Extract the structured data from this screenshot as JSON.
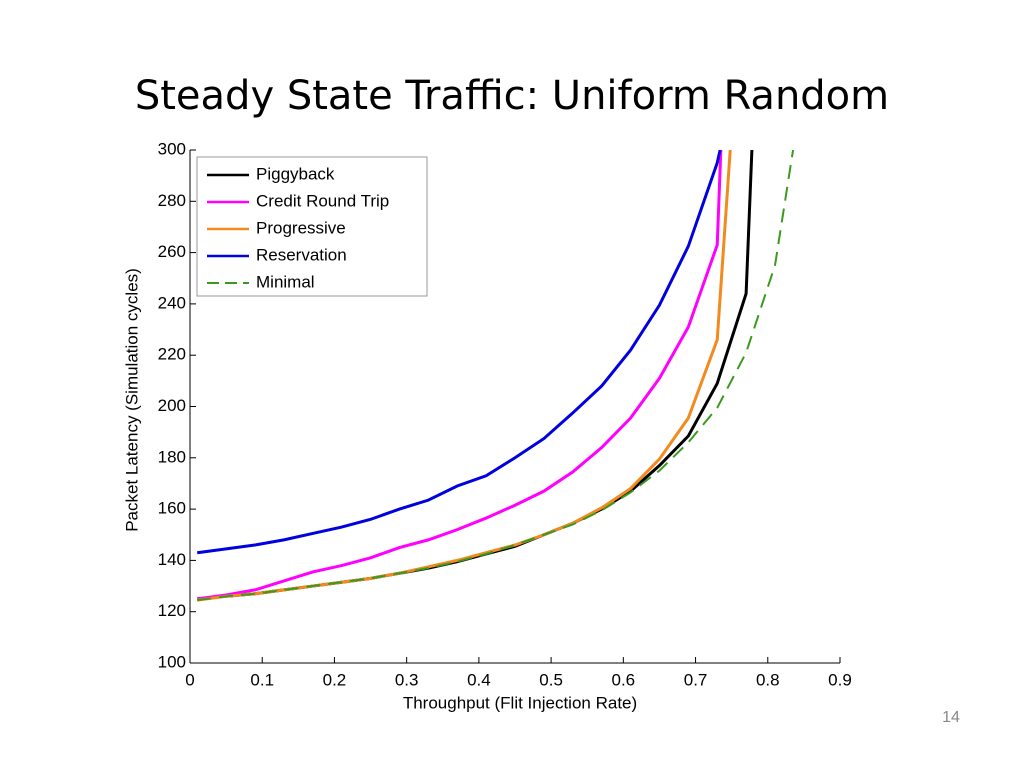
{
  "chart_data": {
    "type": "line",
    "title": "Steady State Traffic: Uniform Random",
    "x_label": "Throughput (Flit Injection Rate)",
    "y_label": "Packet Latency  (Simulation cycles)",
    "page_number": "14",
    "xlim": [
      0,
      0.9
    ],
    "xticks": [
      0,
      0.1,
      0.2,
      0.3,
      0.4,
      0.5,
      0.6,
      0.7,
      0.8,
      0.9
    ],
    "ylim": [
      100,
      300
    ],
    "yticks": [
      100,
      120,
      140,
      160,
      180,
      200,
      220,
      240,
      260,
      280,
      300
    ],
    "legend": "upper left",
    "series": [
      {
        "name": "Piggyback",
        "color": "#000000",
        "dash": false,
        "x": [
          0.01,
          0.05,
          0.09,
          0.13,
          0.17,
          0.21,
          0.25,
          0.29,
          0.33,
          0.37,
          0.41,
          0.45,
          0.49,
          0.53,
          0.57,
          0.61,
          0.65,
          0.69,
          0.73,
          0.77,
          0.778
        ],
        "values": [
          125,
          126,
          127,
          128.5,
          130,
          131.5,
          133,
          135,
          137,
          139.5,
          142.5,
          145.5,
          150,
          154.5,
          160,
          167,
          177,
          188.5,
          209,
          244,
          300
        ]
      },
      {
        "name": "Credit Round Trip",
        "color": "#ff00ff",
        "dash": false,
        "x": [
          0.01,
          0.05,
          0.09,
          0.13,
          0.17,
          0.21,
          0.25,
          0.29,
          0.33,
          0.37,
          0.41,
          0.45,
          0.49,
          0.53,
          0.57,
          0.61,
          0.65,
          0.69,
          0.73,
          0.735
        ],
        "values": [
          125,
          126.5,
          128.5,
          132,
          135.5,
          138,
          141,
          145,
          148,
          152,
          156.5,
          161.5,
          167,
          174.5,
          184,
          195.5,
          211,
          231,
          263,
          300
        ]
      },
      {
        "name": "Progressive",
        "color": "#f28a1e",
        "dash": false,
        "x": [
          0.01,
          0.05,
          0.09,
          0.13,
          0.17,
          0.21,
          0.25,
          0.29,
          0.33,
          0.37,
          0.41,
          0.45,
          0.49,
          0.53,
          0.57,
          0.61,
          0.65,
          0.69,
          0.73,
          0.748
        ],
        "values": [
          124.5,
          126,
          127,
          128.5,
          130,
          131.5,
          133,
          135,
          137.5,
          140,
          143,
          146,
          150,
          154.5,
          160.5,
          168,
          179.5,
          195.5,
          226,
          300
        ]
      },
      {
        "name": "Reservation",
        "color": "#0000e0",
        "dash": false,
        "x": [
          0.01,
          0.05,
          0.09,
          0.13,
          0.17,
          0.21,
          0.25,
          0.29,
          0.33,
          0.37,
          0.41,
          0.45,
          0.49,
          0.53,
          0.57,
          0.61,
          0.65,
          0.69,
          0.73,
          0.734
        ],
        "values": [
          143,
          144.5,
          146,
          148,
          150.5,
          153,
          156,
          160,
          163.5,
          169,
          173,
          180,
          187.5,
          197.5,
          208,
          222,
          239.5,
          262.5,
          295,
          300
        ]
      },
      {
        "name": "Minimal",
        "color": "#3a9a1e",
        "dash": true,
        "x": [
          0.01,
          0.05,
          0.09,
          0.13,
          0.17,
          0.21,
          0.25,
          0.29,
          0.33,
          0.37,
          0.41,
          0.45,
          0.49,
          0.53,
          0.57,
          0.61,
          0.65,
          0.69,
          0.73,
          0.77,
          0.81,
          0.835
        ],
        "values": [
          124.5,
          126,
          127,
          128.5,
          130,
          131.5,
          133,
          135,
          137,
          139.5,
          142.5,
          146,
          150,
          154,
          159.5,
          166.5,
          175,
          186,
          199.5,
          221,
          255,
          300
        ]
      }
    ]
  }
}
